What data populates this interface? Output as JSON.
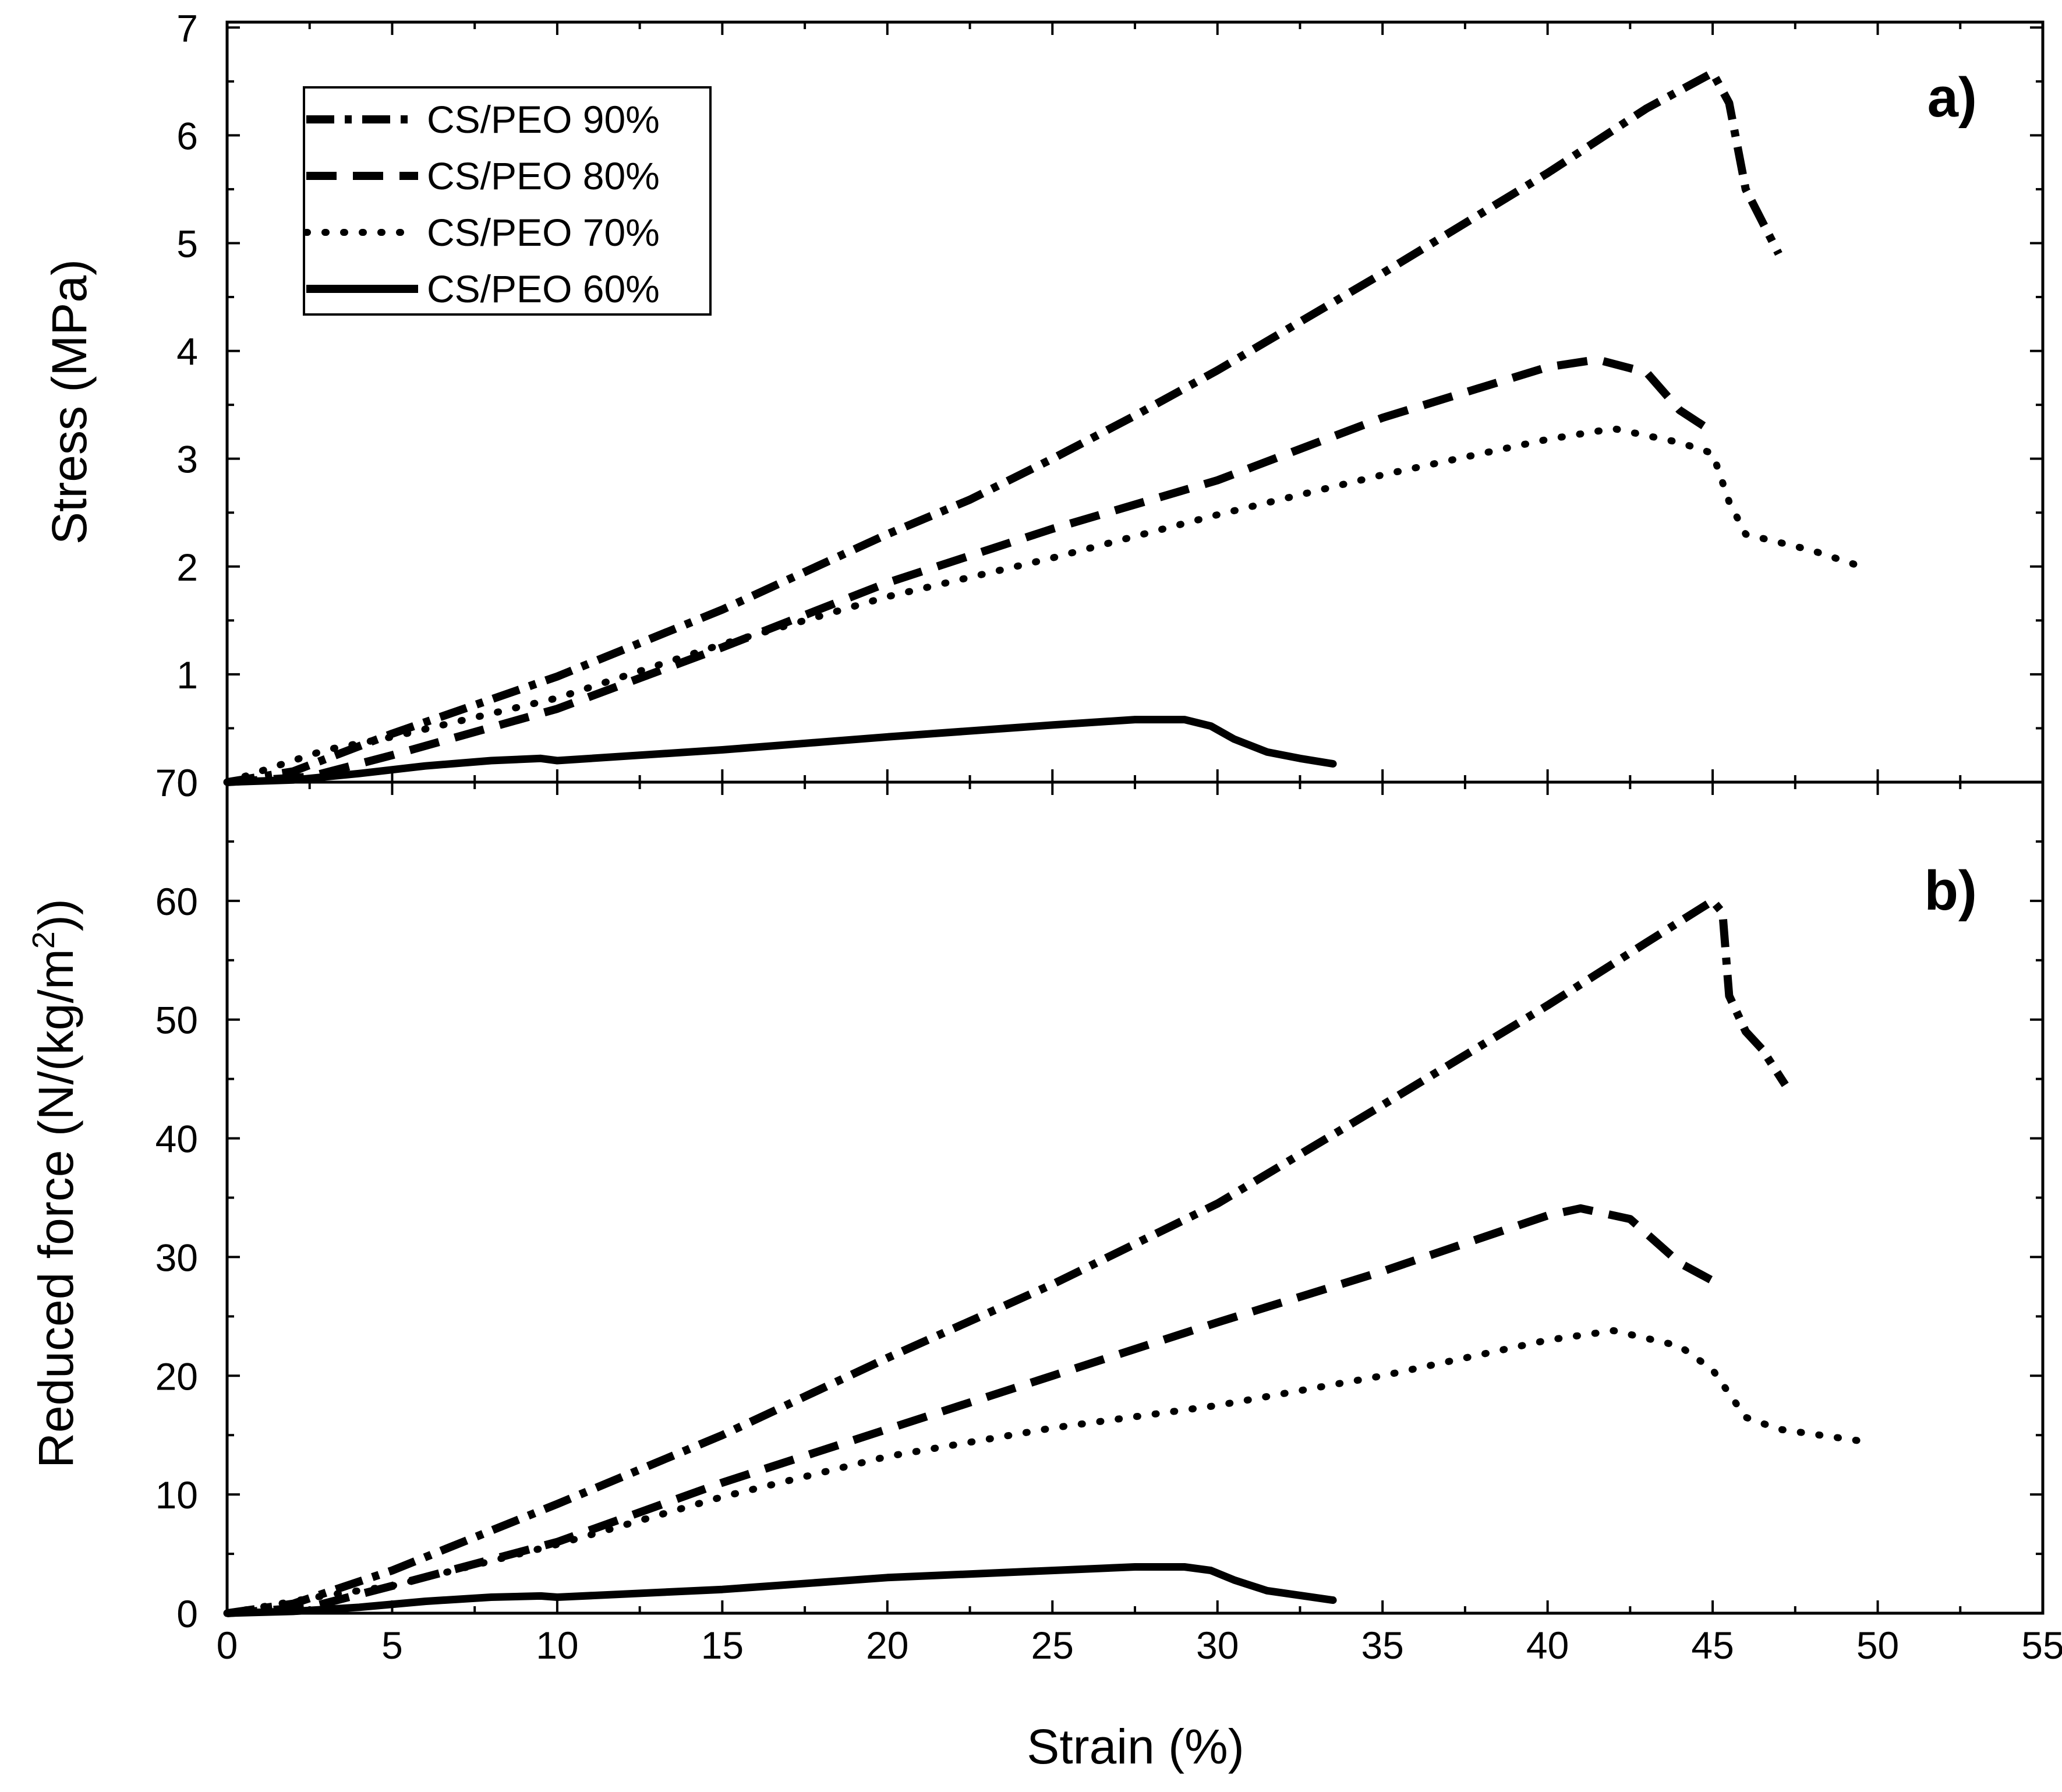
{
  "chart_data": [
    {
      "panel": "a)",
      "type": "line",
      "ylabel": "Stress (MPa)",
      "xlabel": "Strain (%)",
      "xlim": [
        0,
        55
      ],
      "ylim": [
        0,
        7.05
      ],
      "yticks": [
        0,
        1,
        2,
        3,
        4,
        5,
        6,
        7
      ],
      "grid": false,
      "legend_position": "top-left",
      "legend": [
        "CS/PEO 90%",
        "CS/PEO 80%",
        "CS/PEO 70%",
        "CS/PEO 60%"
      ],
      "series": [
        {
          "name": "CS/PEO 90%",
          "style": "dash-dot",
          "x": [
            0,
            2,
            5,
            10,
            15,
            20,
            22.5,
            25,
            27.5,
            30,
            35,
            40,
            43,
            45,
            45.5,
            46,
            47
          ],
          "y": [
            0,
            0.1,
            0.45,
            0.98,
            1.6,
            2.3,
            2.62,
            3.0,
            3.4,
            3.82,
            4.72,
            5.65,
            6.25,
            6.58,
            6.3,
            5.5,
            4.9
          ]
        },
        {
          "name": "CS/PEO 80%",
          "style": "dash",
          "x": [
            0,
            2.5,
            5,
            10,
            15,
            20,
            25,
            30,
            35,
            40,
            41.5,
            43,
            44,
            45
          ],
          "y": [
            0,
            0.05,
            0.25,
            0.68,
            1.25,
            1.85,
            2.35,
            2.8,
            3.38,
            3.85,
            3.92,
            3.8,
            3.45,
            3.25
          ]
        },
        {
          "name": "CS/PEO 70%",
          "style": "dot",
          "x": [
            0,
            1,
            3,
            5,
            10,
            15,
            20,
            25,
            30,
            35,
            40,
            42,
            44,
            45,
            45.5,
            46,
            48,
            49.5
          ],
          "y": [
            0,
            0.1,
            0.3,
            0.42,
            0.78,
            1.28,
            1.72,
            2.08,
            2.48,
            2.85,
            3.18,
            3.28,
            3.15,
            3.05,
            2.6,
            2.3,
            2.15,
            2.0
          ]
        },
        {
          "name": "CS/PEO 60%",
          "style": "solid",
          "x": [
            0,
            2,
            4,
            6,
            8,
            9.5,
            10,
            15,
            20,
            25,
            27.5,
            29,
            29.8,
            30.5,
            31.5,
            32.5,
            33.5
          ],
          "y": [
            0,
            0.02,
            0.08,
            0.15,
            0.2,
            0.22,
            0.2,
            0.3,
            0.42,
            0.53,
            0.58,
            0.58,
            0.52,
            0.4,
            0.28,
            0.22,
            0.17
          ]
        }
      ]
    },
    {
      "panel": "b)",
      "type": "line",
      "ylabel": "Reduced force (N/(kg/m",
      "ylabel_sup": "2",
      "ylabel_tail": "))",
      "xlabel": "Strain (%)",
      "xlim": [
        0,
        55
      ],
      "ylim": [
        0,
        70
      ],
      "xticks": [
        0,
        5,
        10,
        15,
        20,
        25,
        30,
        35,
        40,
        45,
        50,
        55
      ],
      "yticks": [
        0,
        10,
        20,
        30,
        40,
        50,
        60,
        70
      ],
      "grid": false,
      "series": [
        {
          "name": "CS/PEO 90%",
          "style": "dash-dot",
          "x": [
            0,
            2,
            5,
            10,
            15,
            20,
            25,
            30,
            35,
            40,
            43,
            45,
            45.3,
            45.5,
            46,
            46.5,
            47.2
          ],
          "y": [
            0,
            0.8,
            3.6,
            9.2,
            15.0,
            21.5,
            27.7,
            34.5,
            42.8,
            51.2,
            56.5,
            60.0,
            59.0,
            52.0,
            49.0,
            47.5,
            44.5
          ]
        },
        {
          "name": "CS/PEO 80%",
          "style": "dash",
          "x": [
            0,
            2.5,
            5,
            10,
            15,
            20,
            25,
            30,
            35,
            40,
            41,
            42.5,
            44,
            45
          ],
          "y": [
            0,
            0.5,
            2.3,
            6.0,
            11.0,
            15.5,
            20.0,
            24.5,
            28.8,
            33.5,
            34.1,
            33.2,
            29.5,
            28.0
          ]
        },
        {
          "name": "CS/PEO 70%",
          "style": "dot",
          "x": [
            0,
            1,
            3,
            5,
            10,
            15,
            20,
            25,
            30,
            35,
            40,
            42,
            44,
            45,
            46,
            47,
            49.5
          ],
          "y": [
            0,
            0.5,
            1.5,
            2.3,
            5.8,
            9.8,
            13.2,
            15.6,
            17.5,
            20.0,
            23.0,
            23.8,
            22.5,
            20.5,
            16.5,
            15.5,
            14.5
          ]
        },
        {
          "name": "CS/PEO 60%",
          "style": "solid",
          "x": [
            0,
            2,
            4,
            6,
            8,
            9.5,
            10,
            15,
            20,
            25,
            27.5,
            29,
            29.8,
            30.5,
            31.5,
            32.5,
            33.5
          ],
          "y": [
            0,
            0.15,
            0.5,
            1.0,
            1.35,
            1.45,
            1.35,
            2.0,
            3.0,
            3.6,
            3.9,
            3.9,
            3.6,
            2.8,
            1.9,
            1.5,
            1.1
          ]
        }
      ]
    }
  ]
}
